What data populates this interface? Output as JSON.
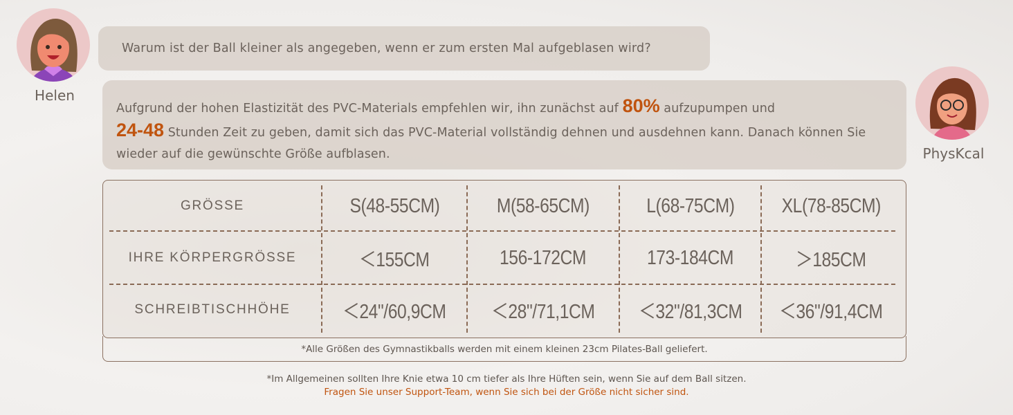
{
  "chat": {
    "user": {
      "name": "Helen",
      "avatar": "woman-avatar-icon"
    },
    "support": {
      "name": "PhysKcal",
      "avatar": "woman-glasses-avatar-icon"
    },
    "question": "Warum ist der Ball kleiner als angegeben, wenn er zum ersten Mal aufgeblasen wird?",
    "answer": {
      "part1": "Aufgrund der hohen Elastizität des PVC-Materials empfehlen wir, ihn zunächst auf ",
      "highlight1": "80%",
      "part2": " aufzupumpen und",
      "highlight2": "24-48",
      "part3": " Stunden Zeit zu geben, damit sich das PVC-Material vollständig dehnen und ausdehnen kann. Danach können Sie wieder auf die gewünschte Größe aufblasen."
    }
  },
  "size_table": {
    "rows": [
      {
        "label": "GRÖSSE",
        "values": [
          "S(48-55CM)",
          "M(58-65CM)",
          "L(68-75CM)",
          "XL(78-85CM)"
        ]
      },
      {
        "label": "IHRE KÖRPERGRÖSSE",
        "values": [
          "＜155CM",
          "156-172CM",
          "173-184CM",
          "＞185CM"
        ]
      },
      {
        "label": "SCHREIBTISCHHÖHE",
        "values": [
          "＜24\"/60,9CM",
          "＜28\"/71,1CM",
          "＜32\"/81,3CM",
          "＜36\"/91,4CM"
        ]
      }
    ],
    "footnote": "*Alle Größen des Gymnastikballs werden mit einem kleinen 23cm Pilates-Ball geliefert."
  },
  "notes": {
    "knee": "*Im Allgemeinen sollten Ihre Knie etwa 10 cm tiefer als Ihre Hüften sein, wenn Sie auf dem Ball sitzen.",
    "support": "Fragen Sie unser Support-Team, wenn Sie sich bei der Größe nicht sicher sind."
  },
  "colors": {
    "accent": "#c0540f",
    "text": "#6b625b",
    "border": "#8a6a55"
  }
}
